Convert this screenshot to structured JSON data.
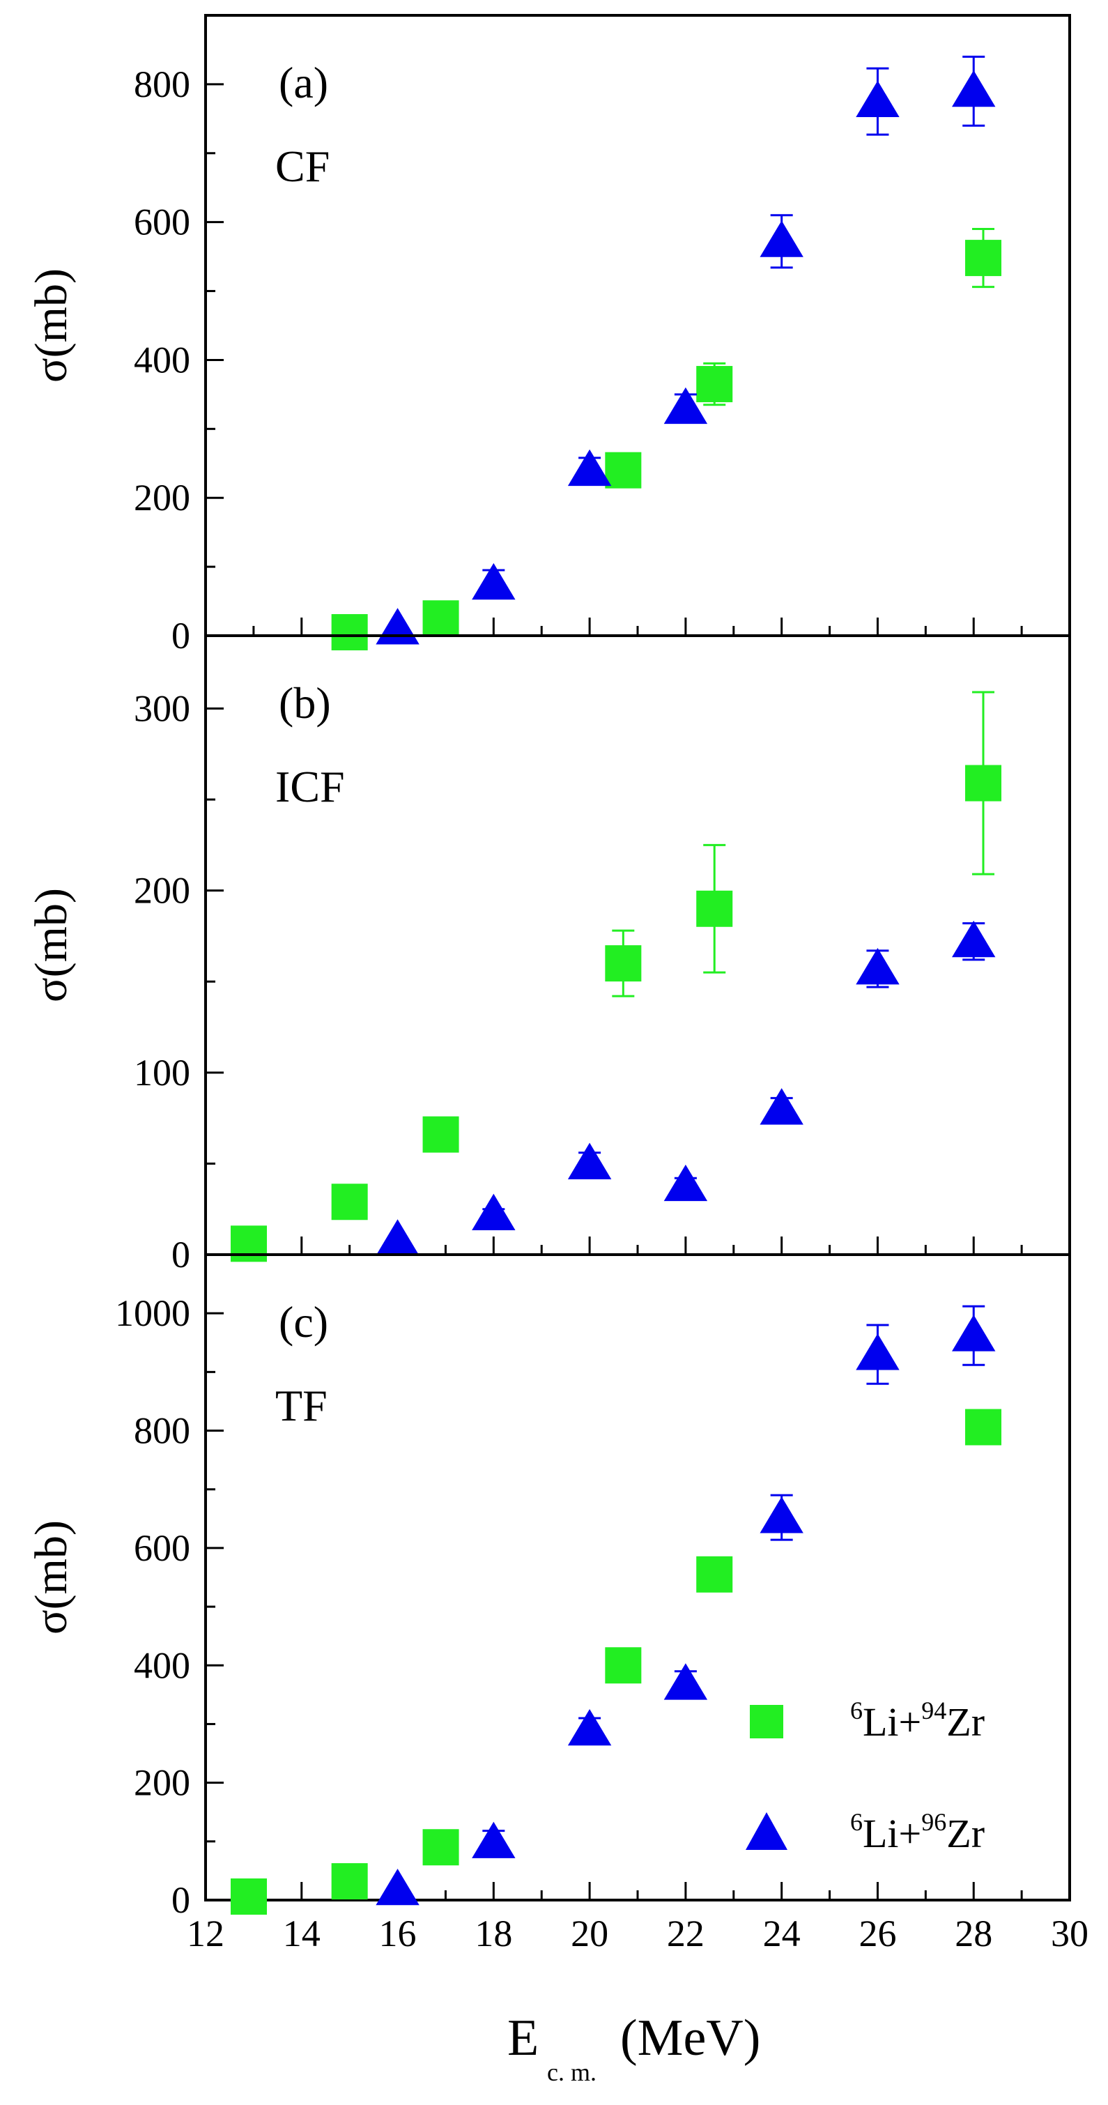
{
  "chart_data": {
    "type": "scatter",
    "x_axis": {
      "label_main": "E",
      "label_subscript": "c. m.",
      "label_unit": "(MeV)",
      "range": [
        12,
        30
      ],
      "ticks": [
        12,
        14,
        16,
        18,
        20,
        22,
        24,
        26,
        28,
        30
      ],
      "minor_ticks": [
        13,
        15,
        17,
        19,
        21,
        23,
        25,
        27,
        29
      ]
    },
    "legend": {
      "placement": "bottom-right of panel (c)",
      "entries": [
        {
          "series": "li94",
          "pre_sup": "6",
          "a": "Li+",
          "mid_sup": "94",
          "b": "Zr"
        },
        {
          "series": "li96",
          "pre_sup": "6",
          "a": "Li+",
          "mid_sup": "96",
          "b": "Zr"
        }
      ]
    },
    "series_styles": {
      "li94": {
        "marker": "square",
        "color": "#22ee22"
      },
      "li96": {
        "marker": "triangle",
        "color": "#0000ee"
      }
    },
    "panels": [
      {
        "id": "a",
        "tag": "(a)",
        "reaction": "CF",
        "ylabel": "σ(mb)",
        "ylim": [
          0,
          900
        ],
        "yticks": [
          0,
          200,
          400,
          600,
          800
        ],
        "yminor": [
          100,
          300,
          500,
          700
        ],
        "series": {
          "li94": [
            {
              "x": 15.0,
              "y": 5,
              "err": 0
            },
            {
              "x": 16.9,
              "y": 25,
              "err": 0
            },
            {
              "x": 20.7,
              "y": 240,
              "err": 0
            },
            {
              "x": 22.6,
              "y": 365,
              "err": 30
            },
            {
              "x": 28.2,
              "y": 548,
              "err": 42
            }
          ],
          "li96": [
            {
              "x": 16.0,
              "y": 10,
              "err": 0
            },
            {
              "x": 18.0,
              "y": 75,
              "err": 20
            },
            {
              "x": 20.0,
              "y": 240,
              "err": 18
            },
            {
              "x": 22.0,
              "y": 330,
              "err": 20
            },
            {
              "x": 24.0,
              "y": 572,
              "err": 38
            },
            {
              "x": 26.0,
              "y": 775,
              "err": 48
            },
            {
              "x": 28.0,
              "y": 790,
              "err": 50
            }
          ]
        }
      },
      {
        "id": "b",
        "tag": "(b)",
        "reaction": "ICF",
        "ylabel": "σ(mb)",
        "ylim": [
          0,
          340
        ],
        "yticks": [
          0,
          100,
          200,
          300
        ],
        "yminor": [
          50,
          150,
          250
        ],
        "series": {
          "li94": [
            {
              "x": 12.9,
              "y": 6,
              "err": 0
            },
            {
              "x": 15.0,
              "y": 29,
              "err": 0
            },
            {
              "x": 16.9,
              "y": 66,
              "err": 0
            },
            {
              "x": 20.7,
              "y": 160,
              "err": 18
            },
            {
              "x": 22.6,
              "y": 190,
              "err": 35
            },
            {
              "x": 28.2,
              "y": 259,
              "err": 50
            }
          ],
          "li96": [
            {
              "x": 16.0,
              "y": 8,
              "err": 0
            },
            {
              "x": 18.0,
              "y": 22,
              "err": 3
            },
            {
              "x": 20.0,
              "y": 50,
              "err": 6
            },
            {
              "x": 22.0,
              "y": 38,
              "err": 4
            },
            {
              "x": 24.0,
              "y": 80,
              "err": 6
            },
            {
              "x": 26.0,
              "y": 157,
              "err": 10
            },
            {
              "x": 28.0,
              "y": 172,
              "err": 10
            }
          ]
        }
      },
      {
        "id": "c",
        "tag": "(c)",
        "reaction": "TF",
        "ylabel": "σ(mb)",
        "ylim": [
          0,
          1100
        ],
        "yticks": [
          0,
          200,
          400,
          600,
          800,
          1000
        ],
        "yminor": [
          100,
          300,
          500,
          700,
          900
        ],
        "series": {
          "li94": [
            {
              "x": 12.9,
              "y": 6,
              "err": 0
            },
            {
              "x": 15.0,
              "y": 32,
              "err": 0
            },
            {
              "x": 16.9,
              "y": 90,
              "err": 0
            },
            {
              "x": 20.7,
              "y": 400,
              "err": 0
            },
            {
              "x": 22.6,
              "y": 555,
              "err": 0
            },
            {
              "x": 28.2,
              "y": 806,
              "err": 25
            }
          ],
          "li96": [
            {
              "x": 16.0,
              "y": 18,
              "err": 0
            },
            {
              "x": 18.0,
              "y": 98,
              "err": 20
            },
            {
              "x": 20.0,
              "y": 290,
              "err": 20
            },
            {
              "x": 22.0,
              "y": 368,
              "err": 22
            },
            {
              "x": 24.0,
              "y": 652,
              "err": 38
            },
            {
              "x": 26.0,
              "y": 930,
              "err": 50
            },
            {
              "x": 28.0,
              "y": 962,
              "err": 50
            }
          ]
        }
      }
    ]
  }
}
